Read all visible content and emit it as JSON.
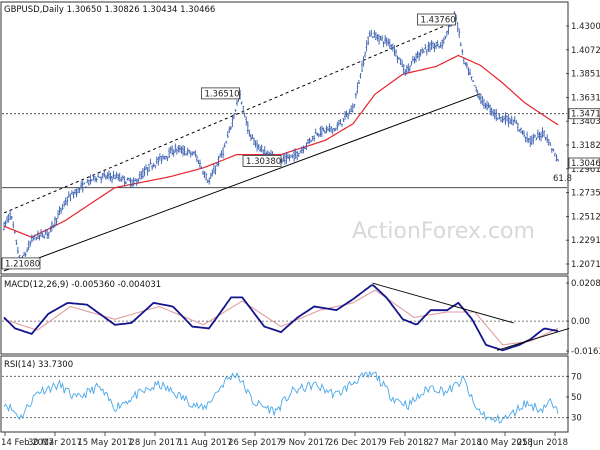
{
  "chart_data": {
    "type": "candlestick",
    "title": "GBPUSD,Daily  1.30650 1.30826 1.30434 1.30466",
    "watermark": "ActionForex.com",
    "colors": {
      "candle": "#3a5fb0",
      "ma": "#e8222a",
      "macd": "#14148c",
      "signal": "#e0a0a0",
      "rsi": "#4aa8e8",
      "trendline_dark": "#000000",
      "hline": "#333333",
      "panel_border": "#333333"
    },
    "dates": [
      "14 Feb 2017",
      "30 Mar 2017",
      "15 May 2017",
      "28 Jun 2017",
      "11 Aug 2017",
      "26 Sep 2017",
      "9 Nov 2017",
      "26 Dec 2017",
      "9 Feb 2018",
      "27 Mar 2018",
      "10 May 2018",
      "25 Jun 2018"
    ],
    "price_axis_ticks": [
      "1.43000",
      "1.40720",
      "1.38510",
      "1.36310",
      "1.34030",
      "1.31820",
      "1.29610",
      "1.27350",
      "1.25120",
      "1.22910",
      "1.20710"
    ],
    "price_ylim": [
      1.2071,
      1.4376
    ],
    "price_keypoints": [
      {
        "x": 0,
        "y": 1.245
      },
      {
        "x": 0.012,
        "y": 1.256
      },
      {
        "x": 0.03,
        "y": 1.2108
      },
      {
        "x": 0.052,
        "y": 1.234
      },
      {
        "x": 0.08,
        "y": 1.239
      },
      {
        "x": 0.115,
        "y": 1.27
      },
      {
        "x": 0.165,
        "y": 1.29
      },
      {
        "x": 0.2,
        "y": 1.29
      },
      {
        "x": 0.235,
        "y": 1.284
      },
      {
        "x": 0.265,
        "y": 1.3
      },
      {
        "x": 0.31,
        "y": 1.315
      },
      {
        "x": 0.345,
        "y": 1.31
      },
      {
        "x": 0.37,
        "y": 1.285
      },
      {
        "x": 0.4,
        "y": 1.318
      },
      {
        "x": 0.425,
        "y": 1.3651
      },
      {
        "x": 0.445,
        "y": 1.325
      },
      {
        "x": 0.47,
        "y": 1.312
      },
      {
        "x": 0.5,
        "y": 1.3038
      },
      {
        "x": 0.53,
        "y": 1.3105
      },
      {
        "x": 0.565,
        "y": 1.33
      },
      {
        "x": 0.6,
        "y": 1.334
      },
      {
        "x": 0.63,
        "y": 1.352
      },
      {
        "x": 0.66,
        "y": 1.42
      },
      {
        "x": 0.7,
        "y": 1.41
      },
      {
        "x": 0.725,
        "y": 1.385
      },
      {
        "x": 0.755,
        "y": 1.405
      },
      {
        "x": 0.79,
        "y": 1.41
      },
      {
        "x": 0.815,
        "y": 1.4376
      },
      {
        "x": 0.83,
        "y": 1.395
      },
      {
        "x": 0.86,
        "y": 1.36
      },
      {
        "x": 0.89,
        "y": 1.345
      },
      {
        "x": 0.92,
        "y": 1.34
      },
      {
        "x": 0.95,
        "y": 1.322
      },
      {
        "x": 0.975,
        "y": 1.33
      },
      {
        "x": 1.0,
        "y": 1.3047
      }
    ],
    "ma_keypoints": [
      {
        "x": 0,
        "y": 1.245
      },
      {
        "x": 0.05,
        "y": 1.235
      },
      {
        "x": 0.11,
        "y": 1.25
      },
      {
        "x": 0.2,
        "y": 1.28
      },
      {
        "x": 0.3,
        "y": 1.29
      },
      {
        "x": 0.36,
        "y": 1.298
      },
      {
        "x": 0.42,
        "y": 1.31
      },
      {
        "x": 0.5,
        "y": 1.31
      },
      {
        "x": 0.58,
        "y": 1.323
      },
      {
        "x": 0.63,
        "y": 1.338
      },
      {
        "x": 0.67,
        "y": 1.365
      },
      {
        "x": 0.72,
        "y": 1.383
      },
      {
        "x": 0.78,
        "y": 1.39
      },
      {
        "x": 0.82,
        "y": 1.4
      },
      {
        "x": 0.86,
        "y": 1.391
      },
      {
        "x": 0.9,
        "y": 1.375
      },
      {
        "x": 0.94,
        "y": 1.357
      },
      {
        "x": 1.0,
        "y": 1.337
      }
    ],
    "annotations": [
      {
        "text": "1.43760",
        "x": 0.815,
        "y": 1.4376,
        "side": "left"
      },
      {
        "text": "1.36510",
        "x": 0.425,
        "y": 1.3651,
        "side": "left"
      },
      {
        "text": "1.30380",
        "x": 0.5,
        "y": 1.3038,
        "side": "left"
      },
      {
        "text": "1.21080",
        "x": 0.03,
        "y": 1.2108,
        "side": "left"
      }
    ],
    "horizontal_lines": [
      {
        "y": 1.3471,
        "label": "1.34710",
        "style": "dotted"
      },
      {
        "y": 1.28,
        "label": "",
        "style": "solid"
      }
    ],
    "current_price_label": "1.30466",
    "fib_label": "61.8",
    "trendlines": [
      {
        "x1": 0.0,
        "y1": 1.2571,
        "x2": 0.81,
        "y2": 1.43,
        "style": "dashed"
      },
      {
        "x1": 0.0,
        "y1": 1.2045,
        "x2": 0.86,
        "y2": 1.3653,
        "style": "solid"
      }
    ],
    "macd": {
      "label": "MACD(12,26,9) -0.005360 -0.004031",
      "ticks": [
        "0.020861",
        "0.00",
        "-0.016357"
      ],
      "ylim": [
        -0.016357,
        0.020861
      ],
      "zero": 0.0,
      "macd_keypoints": [
        {
          "x": 0,
          "y": 0.002
        },
        {
          "x": 0.02,
          "y": -0.004
        },
        {
          "x": 0.05,
          "y": -0.007
        },
        {
          "x": 0.08,
          "y": 0.004
        },
        {
          "x": 0.115,
          "y": 0.01
        },
        {
          "x": 0.15,
          "y": 0.009
        },
        {
          "x": 0.2,
          "y": -0.002
        },
        {
          "x": 0.23,
          "y": -0.001
        },
        {
          "x": 0.27,
          "y": 0.01
        },
        {
          "x": 0.305,
          "y": 0.008
        },
        {
          "x": 0.34,
          "y": -0.003
        },
        {
          "x": 0.37,
          "y": -0.004
        },
        {
          "x": 0.41,
          "y": 0.013
        },
        {
          "x": 0.43,
          "y": 0.013
        },
        {
          "x": 0.47,
          "y": -0.003
        },
        {
          "x": 0.5,
          "y": -0.006
        },
        {
          "x": 0.53,
          "y": 0.002
        },
        {
          "x": 0.56,
          "y": 0.008
        },
        {
          "x": 0.6,
          "y": 0.006
        },
        {
          "x": 0.63,
          "y": 0.012
        },
        {
          "x": 0.665,
          "y": 0.02
        },
        {
          "x": 0.69,
          "y": 0.013
        },
        {
          "x": 0.72,
          "y": 0.001
        },
        {
          "x": 0.745,
          "y": -0.002
        },
        {
          "x": 0.77,
          "y": 0.006
        },
        {
          "x": 0.8,
          "y": 0.006
        },
        {
          "x": 0.82,
          "y": 0.01
        },
        {
          "x": 0.845,
          "y": 0.001
        },
        {
          "x": 0.87,
          "y": -0.013
        },
        {
          "x": 0.9,
          "y": -0.016
        },
        {
          "x": 0.93,
          "y": -0.013
        },
        {
          "x": 0.95,
          "y": -0.01
        },
        {
          "x": 0.975,
          "y": -0.004
        },
        {
          "x": 1.0,
          "y": -0.0054
        }
      ],
      "signal_keypoints": [
        {
          "x": 0,
          "y": 0.001
        },
        {
          "x": 0.06,
          "y": -0.005
        },
        {
          "x": 0.12,
          "y": 0.008
        },
        {
          "x": 0.2,
          "y": 0.001
        },
        {
          "x": 0.28,
          "y": 0.008
        },
        {
          "x": 0.36,
          "y": -0.002
        },
        {
          "x": 0.43,
          "y": 0.011
        },
        {
          "x": 0.5,
          "y": -0.003
        },
        {
          "x": 0.57,
          "y": 0.006
        },
        {
          "x": 0.63,
          "y": 0.01
        },
        {
          "x": 0.67,
          "y": 0.017
        },
        {
          "x": 0.74,
          "y": 0.002
        },
        {
          "x": 0.8,
          "y": 0.005
        },
        {
          "x": 0.85,
          "y": 0.005
        },
        {
          "x": 0.9,
          "y": -0.013
        },
        {
          "x": 0.95,
          "y": -0.011
        },
        {
          "x": 1.0,
          "y": -0.004
        }
      ],
      "trendlines": [
        {
          "x1": 0.665,
          "y1": 0.0208,
          "x2": 0.92,
          "y2": -0.001,
          "style": "solid"
        },
        {
          "x1": 0.89,
          "y1": -0.016,
          "x2": 1.02,
          "y2": -0.004,
          "style": "solid"
        }
      ]
    },
    "rsi": {
      "label": "RSI(14) 33.7300",
      "ticks": [
        "70",
        "50",
        "30"
      ],
      "ylim": [
        20,
        80
      ],
      "guides": [
        70,
        30
      ],
      "keypoints": [
        {
          "x": 0,
          "y": 45
        },
        {
          "x": 0.03,
          "y": 30
        },
        {
          "x": 0.06,
          "y": 55
        },
        {
          "x": 0.1,
          "y": 62
        },
        {
          "x": 0.13,
          "y": 48
        },
        {
          "x": 0.17,
          "y": 60
        },
        {
          "x": 0.2,
          "y": 40
        },
        {
          "x": 0.24,
          "y": 52
        },
        {
          "x": 0.28,
          "y": 62
        },
        {
          "x": 0.32,
          "y": 50
        },
        {
          "x": 0.36,
          "y": 38
        },
        {
          "x": 0.4,
          "y": 66
        },
        {
          "x": 0.42,
          "y": 73
        },
        {
          "x": 0.45,
          "y": 45
        },
        {
          "x": 0.49,
          "y": 36
        },
        {
          "x": 0.52,
          "y": 55
        },
        {
          "x": 0.56,
          "y": 62
        },
        {
          "x": 0.6,
          "y": 52
        },
        {
          "x": 0.64,
          "y": 68
        },
        {
          "x": 0.67,
          "y": 72
        },
        {
          "x": 0.7,
          "y": 50
        },
        {
          "x": 0.73,
          "y": 42
        },
        {
          "x": 0.77,
          "y": 60
        },
        {
          "x": 0.8,
          "y": 55
        },
        {
          "x": 0.83,
          "y": 67
        },
        {
          "x": 0.85,
          "y": 40
        },
        {
          "x": 0.88,
          "y": 27
        },
        {
          "x": 0.91,
          "y": 30
        },
        {
          "x": 0.94,
          "y": 44
        },
        {
          "x": 0.97,
          "y": 38
        },
        {
          "x": 0.985,
          "y": 46
        },
        {
          "x": 1.0,
          "y": 33.73
        }
      ]
    }
  }
}
